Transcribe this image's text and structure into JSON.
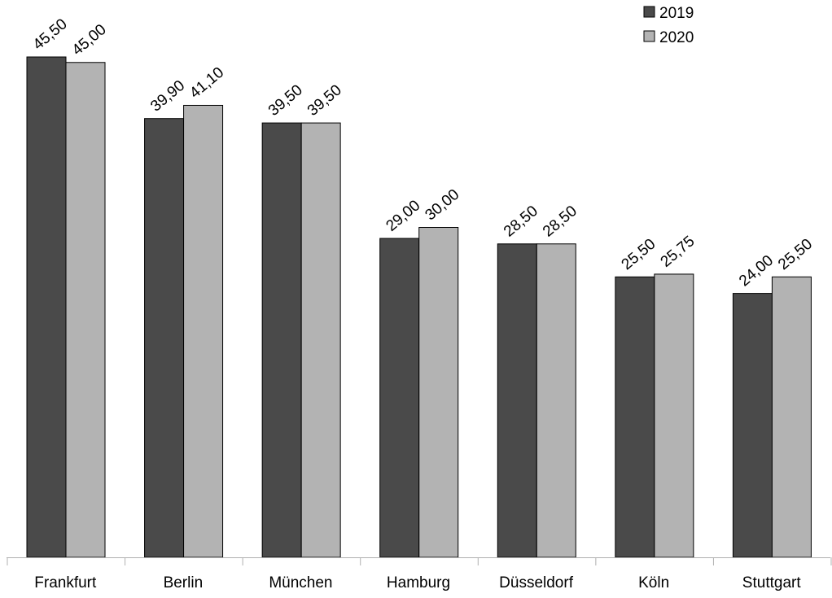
{
  "chart_data": {
    "type": "bar",
    "categories": [
      "Frankfurt",
      "Berlin",
      "München",
      "Hamburg",
      "Düsseldorf",
      "Köln",
      "Stuttgart"
    ],
    "series": [
      {
        "name": "2019",
        "color": "#4a4a4a",
        "values": [
          45.5,
          39.9,
          39.5,
          29.0,
          28.5,
          25.5,
          24.0
        ],
        "labels": [
          "45,50",
          "39,90",
          "39,50",
          "29,00",
          "28,50",
          "25,50",
          "24,00"
        ]
      },
      {
        "name": "2020",
        "color": "#b3b3b3",
        "values": [
          45.0,
          41.1,
          39.5,
          30.0,
          28.5,
          25.75,
          25.5
        ],
        "labels": [
          "45,00",
          "41,10",
          "39,50",
          "30,00",
          "28,50",
          "25,75",
          "25,50"
        ]
      }
    ],
    "title": "",
    "xlabel": "",
    "ylabel": "",
    "ylim": [
      0,
      45.5
    ],
    "grid": false,
    "legend_position": "top-right",
    "value_axis_visible": false
  }
}
